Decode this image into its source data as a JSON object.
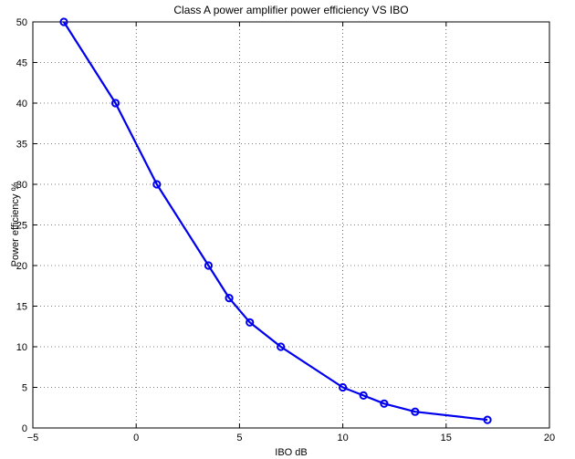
{
  "chart_data": {
    "type": "line",
    "title": "Class A power amplifier power efficiency VS IBO",
    "xlabel": "IBO dB",
    "ylabel": "Power efficiency %",
    "xlim": [
      -5,
      20
    ],
    "ylim": [
      0,
      50
    ],
    "xticks": [
      -5,
      0,
      5,
      10,
      15,
      20
    ],
    "yticks": [
      0,
      5,
      10,
      15,
      20,
      25,
      30,
      35,
      40,
      45,
      50
    ],
    "xtick_labels": [
      "−5",
      "0",
      "5",
      "10",
      "15",
      "20"
    ],
    "ytick_labels": [
      "0",
      "5",
      "10",
      "15",
      "20",
      "25",
      "30",
      "35",
      "40",
      "45",
      "50"
    ],
    "grid": true,
    "grid_style": "dotted",
    "marker": "circle",
    "line_color": "#0000ee",
    "series": [
      {
        "x": [
          -3.5,
          -1,
          1,
          3.5,
          4.5,
          5.5,
          7,
          10,
          11,
          12,
          13.5,
          17
        ],
        "y": [
          50,
          40,
          30,
          20,
          16,
          13,
          10,
          5,
          4,
          3,
          2,
          1
        ]
      }
    ]
  }
}
